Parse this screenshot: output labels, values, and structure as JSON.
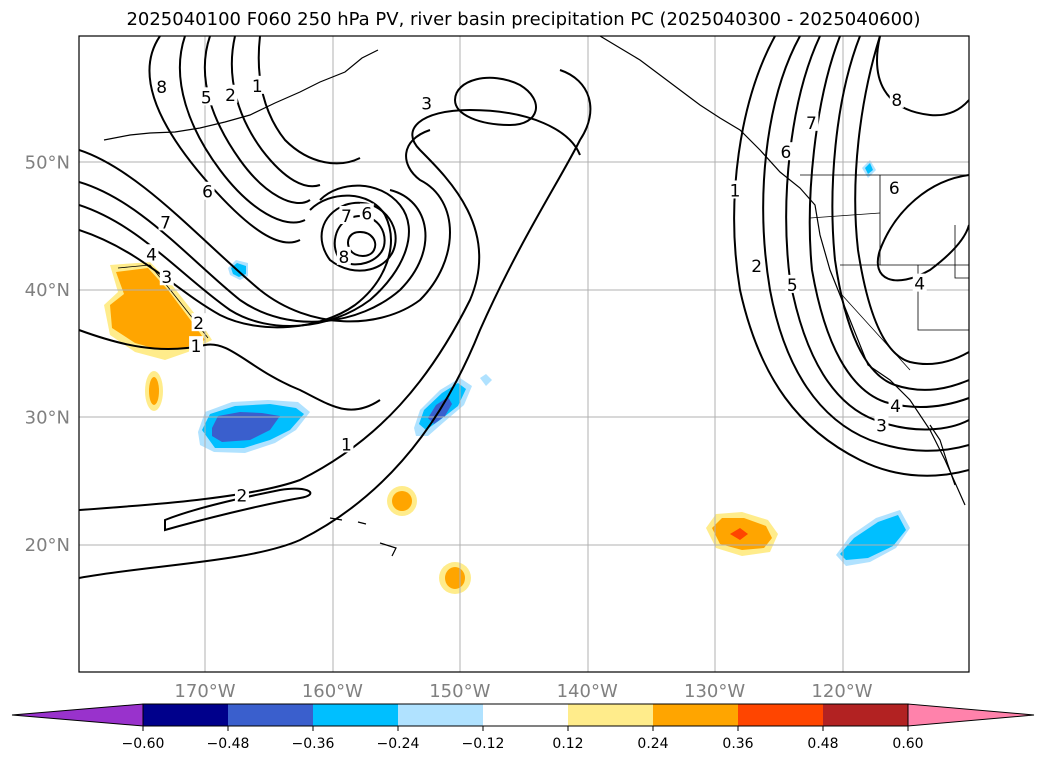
{
  "title": "2025040100 F060 250 hPa PV, river basin precipitation PC (2025040300 - 2025040600)",
  "lat_labels": [
    {
      "lat": 50,
      "text": "50°N"
    },
    {
      "lat": 40,
      "text": "40°N"
    },
    {
      "lat": 30,
      "text": "30°N"
    },
    {
      "lat": 20,
      "text": "20°N"
    }
  ],
  "lon_labels": [
    {
      "lon": -170,
      "text": "170°W"
    },
    {
      "lon": -160,
      "text": "160°W"
    },
    {
      "lon": -150,
      "text": "150°W"
    },
    {
      "lon": -140,
      "text": "140°W"
    },
    {
      "lon": -130,
      "text": "130°W"
    },
    {
      "lon": -120,
      "text": "120°W"
    }
  ],
  "contour_labels": [
    {
      "text": "8",
      "lon": -173.4,
      "lat": 55.9
    },
    {
      "text": "5",
      "lon": -169.9,
      "lat": 55.1
    },
    {
      "text": "2",
      "lon": -168.0,
      "lat": 55.3
    },
    {
      "text": "1",
      "lon": -165.9,
      "lat": 56.0
    },
    {
      "text": "3",
      "lon": -152.6,
      "lat": 54.6
    },
    {
      "text": "6",
      "lon": -169.8,
      "lat": 47.7
    },
    {
      "text": "7",
      "lon": -173.1,
      "lat": 45.3
    },
    {
      "text": "4",
      "lon": -174.2,
      "lat": 42.8
    },
    {
      "text": "3",
      "lon": -173.0,
      "lat": 41.0
    },
    {
      "text": "2",
      "lon": -170.5,
      "lat": 37.4
    },
    {
      "text": "1",
      "lon": -170.7,
      "lat": 35.6
    },
    {
      "text": "7",
      "lon": -158.9,
      "lat": 45.8
    },
    {
      "text": "6",
      "lon": -157.3,
      "lat": 46.0
    },
    {
      "text": "8",
      "lon": -159.1,
      "lat": 42.6
    },
    {
      "text": "1",
      "lon": -158.9,
      "lat": 27.9
    },
    {
      "text": "2",
      "lon": -167.1,
      "lat": 23.9
    },
    {
      "text": "8",
      "lon": -115.7,
      "lat": 54.9
    },
    {
      "text": "7",
      "lon": -122.4,
      "lat": 53.1
    },
    {
      "text": "6",
      "lon": -124.4,
      "lat": 50.8
    },
    {
      "text": "6",
      "lon": -115.9,
      "lat": 48.0
    },
    {
      "text": "1",
      "lon": -128.4,
      "lat": 47.8
    },
    {
      "text": "2",
      "lon": -126.7,
      "lat": 41.9
    },
    {
      "text": "5",
      "lon": -123.9,
      "lat": 40.4
    },
    {
      "text": "4",
      "lon": -113.9,
      "lat": 40.5
    },
    {
      "text": "4",
      "lon": -115.8,
      "lat": 30.9
    },
    {
      "text": "3",
      "lon": -116.9,
      "lat": 29.4
    }
  ],
  "colorbar": {
    "colors": [
      "#9932cc",
      "#00008b",
      "#3a5fcd",
      "#00bfff",
      "#b0e2ff",
      "#ffffff",
      "#ffec8b",
      "#ffa500",
      "#ff4500",
      "#b22222",
      "#ff82ab"
    ],
    "ticks": [
      "−0.60",
      "−0.48",
      "−0.36",
      "−0.24",
      "−0.12",
      "0.12",
      "0.24",
      "0.36",
      "0.48",
      "0.60"
    ]
  },
  "icons": [
    "contour-line",
    "coastline",
    "state-boundary"
  ]
}
